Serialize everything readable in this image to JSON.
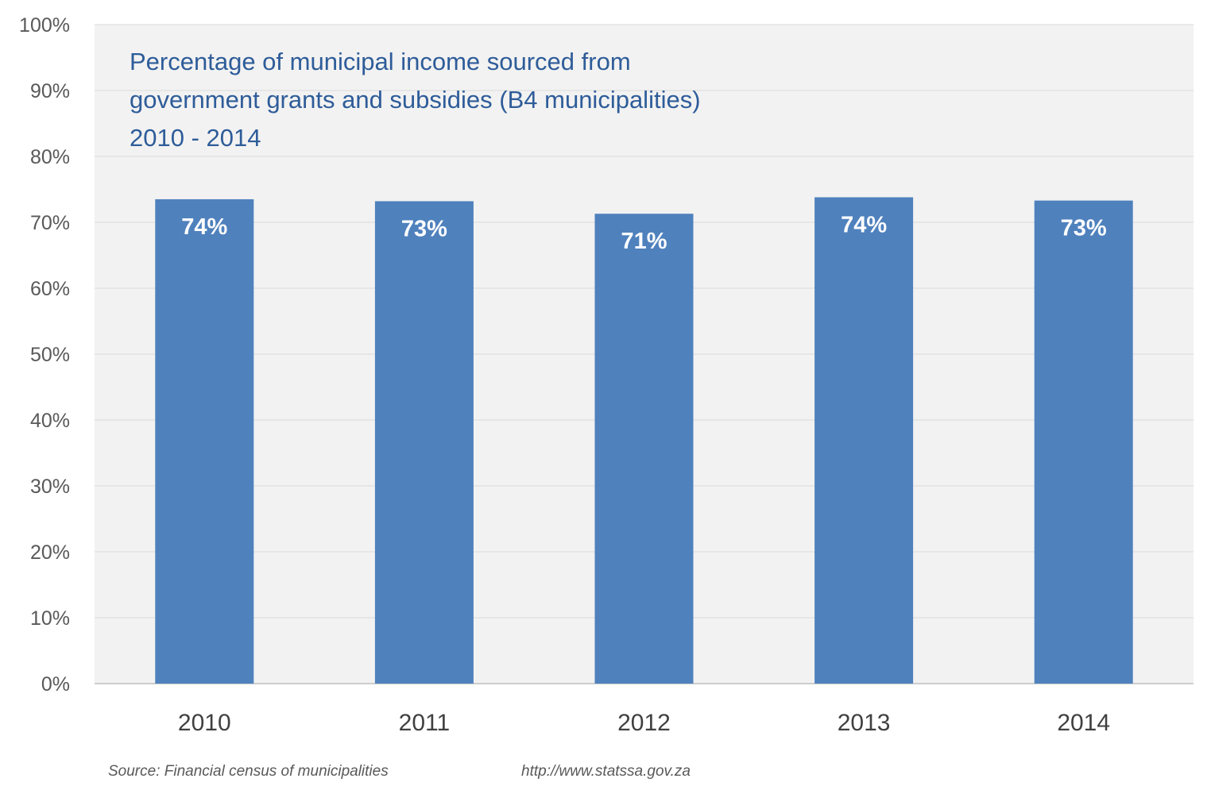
{
  "colors": {
    "bar": "#4F81BD",
    "plot_background": "#F2F2F2",
    "title": "#2E5C99",
    "gridline": "#D9D9D9"
  },
  "chart_data": {
    "type": "bar",
    "title_lines": [
      "Percentage of municipal income sourced from",
      "government grants and subsidies (B4 municipalities)",
      "2010 - 2014"
    ],
    "categories": [
      "2010",
      "2011",
      "2012",
      "2013",
      "2014"
    ],
    "values": [
      73.5,
      73.2,
      71.3,
      73.8,
      73.3
    ],
    "data_labels": [
      "74%",
      "73%",
      "71%",
      "74%",
      "73%"
    ],
    "ylim": [
      0,
      100
    ],
    "yticks": [
      0,
      10,
      20,
      30,
      40,
      50,
      60,
      70,
      80,
      90,
      100
    ],
    "ytick_labels": [
      "0%",
      "10%",
      "20%",
      "30%",
      "40%",
      "50%",
      "60%",
      "70%",
      "80%",
      "90%",
      "100%"
    ],
    "grid": true,
    "legend": "none"
  },
  "footer": {
    "source": "Source: Financial census of municipalities",
    "url": "http://www.statssa.gov.za"
  }
}
